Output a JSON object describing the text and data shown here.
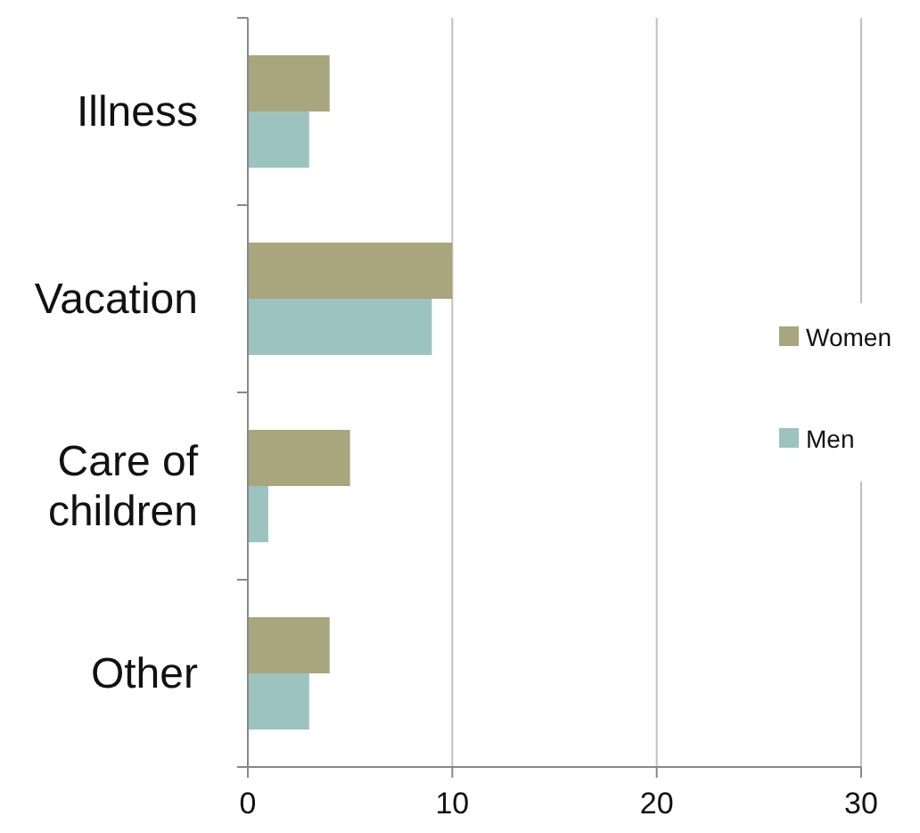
{
  "chart_data": {
    "type": "bar",
    "orientation": "horizontal",
    "categories": [
      "Illness",
      "Vacation",
      "Care of children",
      "Other"
    ],
    "series": [
      {
        "name": "Women",
        "color": "#a9a57c",
        "values": [
          4,
          10,
          5,
          4
        ]
      },
      {
        "name": "Men",
        "color": "#9dc3c1",
        "values": [
          3,
          9,
          1,
          3
        ]
      }
    ],
    "xlim": [
      0,
      30
    ],
    "xticks": [
      0,
      10,
      20,
      30
    ],
    "grid": "x",
    "legend": "right"
  }
}
